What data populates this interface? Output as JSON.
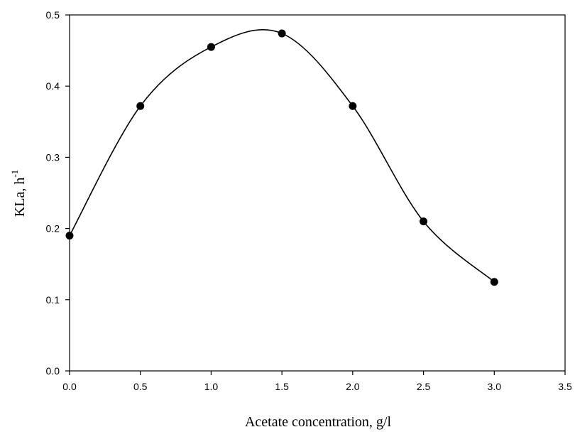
{
  "chart_data": {
    "type": "line",
    "xlabel": "Acetate concentration, g/l",
    "ylabel_base": "KLa, h",
    "ylabel_sup": "-1",
    "xlim": [
      0.0,
      3.5
    ],
    "ylim": [
      0.0,
      0.5
    ],
    "xticks": [
      "0.0",
      "0.5",
      "1.0",
      "1.5",
      "2.0",
      "2.5",
      "3.0",
      "3.5"
    ],
    "yticks": [
      "0.0",
      "0.1",
      "0.2",
      "0.3",
      "0.4",
      "0.5"
    ],
    "grid": false,
    "series": [
      {
        "x": [
          0.0,
          0.5,
          1.0,
          1.5,
          2.0,
          2.5,
          3.0
        ],
        "y": [
          0.19,
          0.372,
          0.455,
          0.474,
          0.372,
          0.21,
          0.125
        ],
        "marker": "filled-circle",
        "line": "smooth",
        "color": "#000000"
      }
    ]
  }
}
